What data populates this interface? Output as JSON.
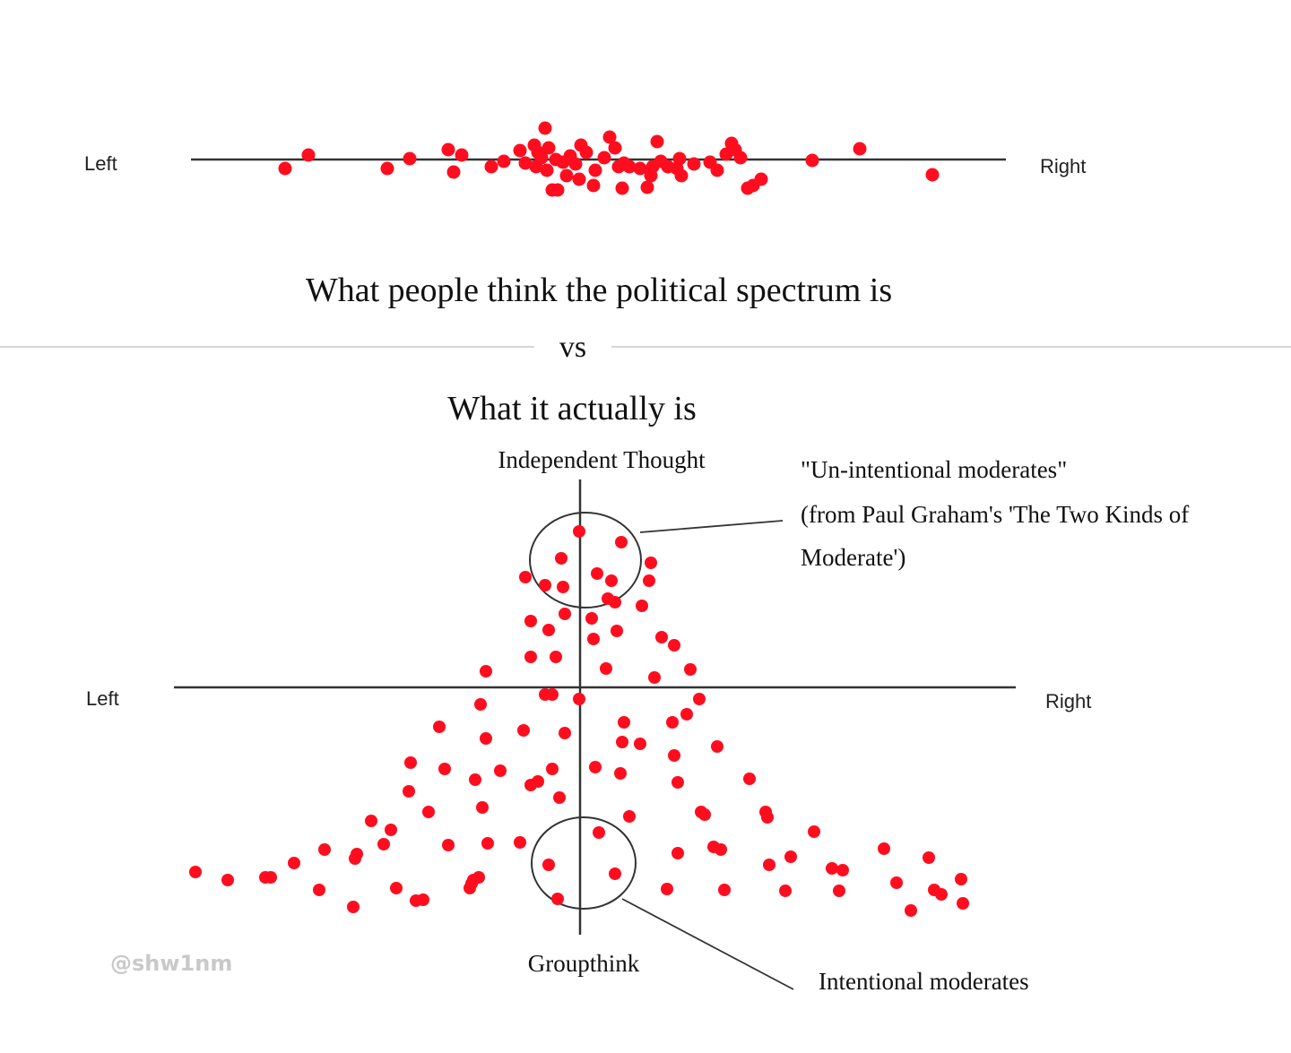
{
  "colors": {
    "dot": "#ff0d1f",
    "axis": "#333333",
    "divider": "#d6d6d6",
    "circle": "#333333"
  },
  "top_panel": {
    "left_label": "Left",
    "right_label": "Right",
    "caption": "What people think the political spectrum is"
  },
  "divider": {
    "label": "vs"
  },
  "bottom_panel": {
    "title": "What it actually is",
    "top_label": "Independent Thought",
    "bottom_label": "Groupthink",
    "left_label": "Left",
    "right_label": "Right",
    "annotation_top": {
      "line1": "\"Un-intentional moderates\"",
      "line2": "(from Paul Graham's 'The Two Kinds of",
      "line3": "Moderate')"
    },
    "annotation_bottom": "Intentional moderates"
  },
  "watermark": "@shw1nm"
}
